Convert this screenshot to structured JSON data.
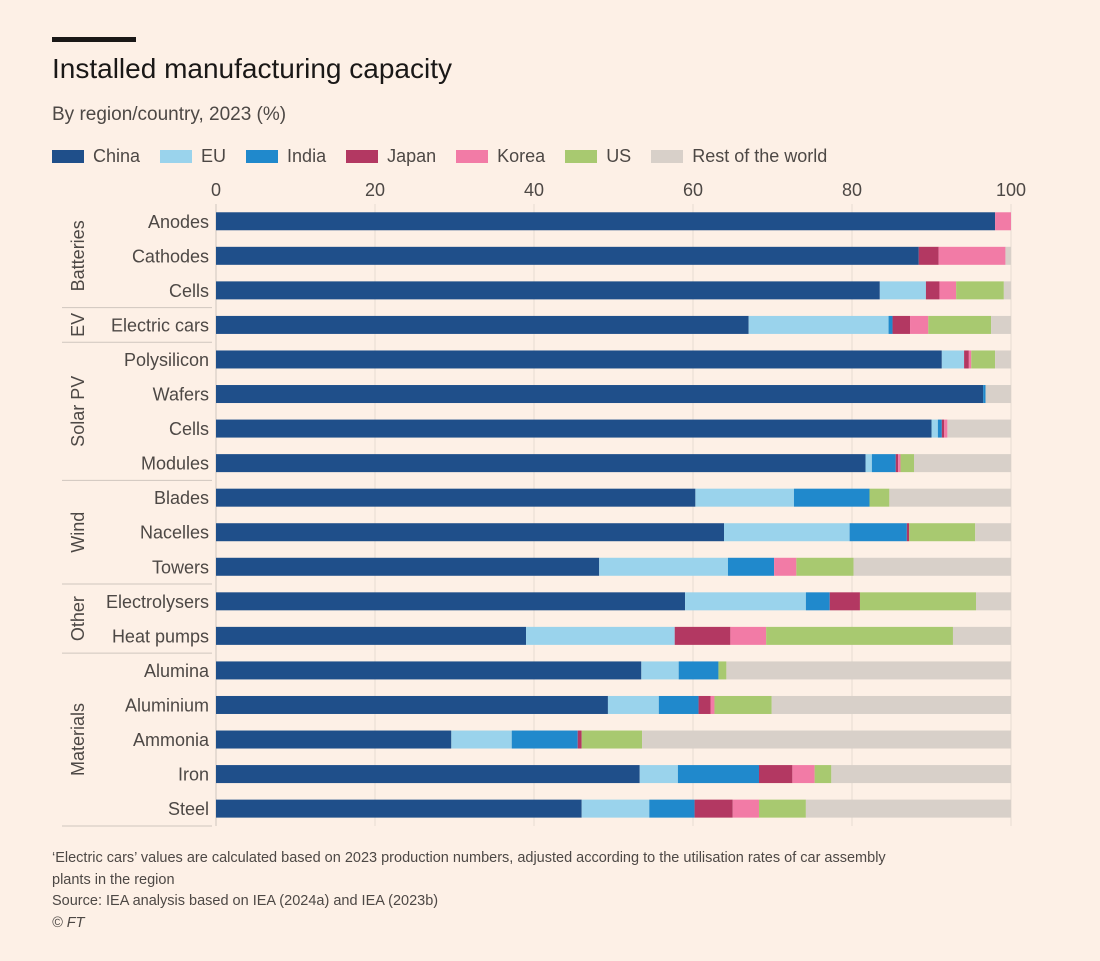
{
  "title": "Installed manufacturing capacity",
  "subtitle": "By region/country, 2023 (%)",
  "footnotes": {
    "note_line1": "‘Electric cars’ values are calculated based on 2023 production numbers, adjusted according to the utilisation rates of car assembly",
    "note_line2": "plants in the region",
    "source": "Source: IEA analysis based on IEA (2024a) and IEA (2023b)",
    "copyright": "© FT"
  },
  "chart_data": {
    "type": "bar",
    "orientation": "horizontal",
    "stacked": true,
    "title": "Installed manufacturing capacity",
    "subtitle": "By region/country, 2023 (%)",
    "xlabel": "",
    "ylabel": "",
    "xlim": [
      0,
      100
    ],
    "xticks": [
      0,
      20,
      40,
      60,
      80,
      100
    ],
    "grid": true,
    "legend_position": "top",
    "groups": [
      {
        "name": "Batteries",
        "categories": [
          "Anodes",
          "Cathodes",
          "Cells"
        ]
      },
      {
        "name": "EV",
        "categories": [
          "Electric cars"
        ]
      },
      {
        "name": "Solar PV",
        "categories": [
          "Polysilicon",
          "Wafers",
          "Cells",
          "Modules"
        ]
      },
      {
        "name": "Wind",
        "categories": [
          "Blades",
          "Nacelles",
          "Towers"
        ]
      },
      {
        "name": "Other",
        "categories": [
          "Electrolysers",
          "Heat pumps"
        ]
      },
      {
        "name": "Materials",
        "categories": [
          "Alumina",
          "Aluminium",
          "Ammonia",
          "Iron",
          "Steel"
        ]
      }
    ],
    "categories": [
      "Anodes",
      "Cathodes",
      "Cells",
      "Electric cars",
      "Polysilicon",
      "Wafers",
      "Cells",
      "Modules",
      "Blades",
      "Nacelles",
      "Towers",
      "Electrolysers",
      "Heat pumps",
      "Alumina",
      "Aluminium",
      "Ammonia",
      "Iron",
      "Steel"
    ],
    "series": [
      {
        "name": "China",
        "color": "#1f4f8a",
        "values": [
          98,
          88.4,
          83.5,
          67,
          91.3,
          96.5,
          90,
          81.7,
          60.3,
          63.9,
          48.2,
          59,
          39,
          53.5,
          49.3,
          29.6,
          53.3,
          46
        ]
      },
      {
        "name": "EU",
        "color": "#9ad3ec",
        "values": [
          0,
          0,
          5.8,
          17.6,
          2.8,
          0,
          0.8,
          0.8,
          12.4,
          15.8,
          16.2,
          15.2,
          18.7,
          4.7,
          6.4,
          7.6,
          4.8,
          8.5
        ]
      },
      {
        "name": "India",
        "color": "#2089cc",
        "values": [
          0,
          0,
          0,
          0.5,
          0,
          0.3,
          0.5,
          3,
          9.5,
          7.2,
          5.8,
          3,
          0,
          5,
          5,
          8.3,
          10.2,
          5.7
        ]
      },
      {
        "name": "Japan",
        "color": "#b33862",
        "values": [
          0,
          2.5,
          1.7,
          2.2,
          0.6,
          0,
          0.3,
          0.3,
          0,
          0.3,
          0,
          3.8,
          7,
          0,
          1.5,
          0.5,
          4.2,
          4.8
        ]
      },
      {
        "name": "Korea",
        "color": "#f27ba6",
        "values": [
          2,
          8.4,
          2.1,
          2.3,
          0.3,
          0,
          0.4,
          0.3,
          0,
          0,
          2.8,
          0,
          4.5,
          0,
          0.5,
          0,
          2.8,
          3.3
        ]
      },
      {
        "name": "US",
        "color": "#a8c970",
        "values": [
          0,
          0,
          6,
          7.9,
          3,
          0,
          0,
          1.7,
          2.5,
          8.3,
          7.2,
          14.6,
          23.5,
          1,
          7.2,
          7.6,
          2.1,
          5.9
        ]
      },
      {
        "name": "Rest of the world",
        "color": "#d8d0c9",
        "values": [
          0,
          0.7,
          0.9,
          2.5,
          2,
          3.2,
          8,
          12.2,
          15.3,
          4.5,
          19.8,
          4.4,
          7.3,
          35.8,
          30.1,
          46.4,
          22.6,
          25.8
        ]
      }
    ]
  }
}
